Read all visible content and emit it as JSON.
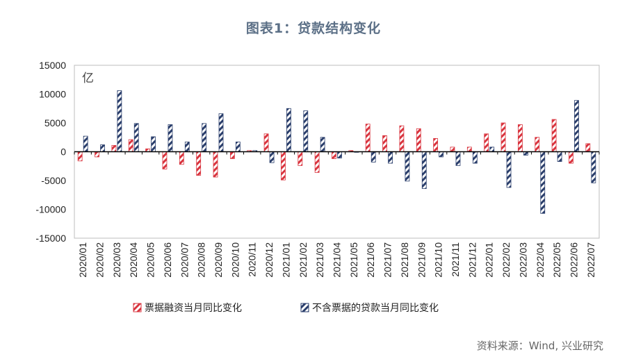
{
  "title": "图表1：贷款结构变化",
  "source": "资料来源：Wind, 兴业研究",
  "colors": {
    "series1": "#d9353f",
    "series2": "#2b3f6c"
  },
  "chart_data": {
    "type": "bar",
    "unit_label": "亿",
    "ylim": [
      -15000,
      15000
    ],
    "yticks": [
      "15000",
      "10000",
      "5000",
      "0",
      "-5000",
      "-10000",
      "-15000"
    ],
    "grid": false,
    "legend_position": "bottom",
    "categories": [
      "2020/01",
      "2020/02",
      "2020/03",
      "2020/04",
      "2020/05",
      "2020/06",
      "2020/07",
      "2020/08",
      "2020/09",
      "2020/10",
      "2020/11",
      "2020/12",
      "2021/01",
      "2021/02",
      "2021/03",
      "2021/04",
      "2021/05",
      "2021/06",
      "2021/07",
      "2021/08",
      "2021/09",
      "2021/10",
      "2021/11",
      "2021/12",
      "2022/01",
      "2022/02",
      "2022/03",
      "2022/04",
      "2022/05",
      "2022/06",
      "2022/07"
    ],
    "series": [
      {
        "name": "票据融资当月同比变化",
        "values": [
          -1600,
          -900,
          1100,
          2100,
          500,
          -3000,
          -2200,
          -4100,
          -4400,
          -1200,
          200,
          3100,
          -4900,
          -2400,
          -3600,
          -1200,
          200,
          4800,
          2800,
          4500,
          4000,
          2300,
          800,
          800,
          3100,
          5000,
          4700,
          2500,
          5600,
          -2000,
          1400
        ]
      },
      {
        "name": "不含票据的贷款当月同比变化",
        "values": [
          2700,
          1200,
          10600,
          4900,
          2600,
          4700,
          1700,
          4900,
          6600,
          1700,
          200,
          -1900,
          7500,
          7100,
          2500,
          -1100,
          -100,
          -1800,
          -2000,
          -5100,
          -6400,
          -900,
          -2400,
          -2000,
          800,
          -6200,
          -600,
          -10700,
          -1700,
          8900,
          -5400
        ]
      }
    ]
  }
}
